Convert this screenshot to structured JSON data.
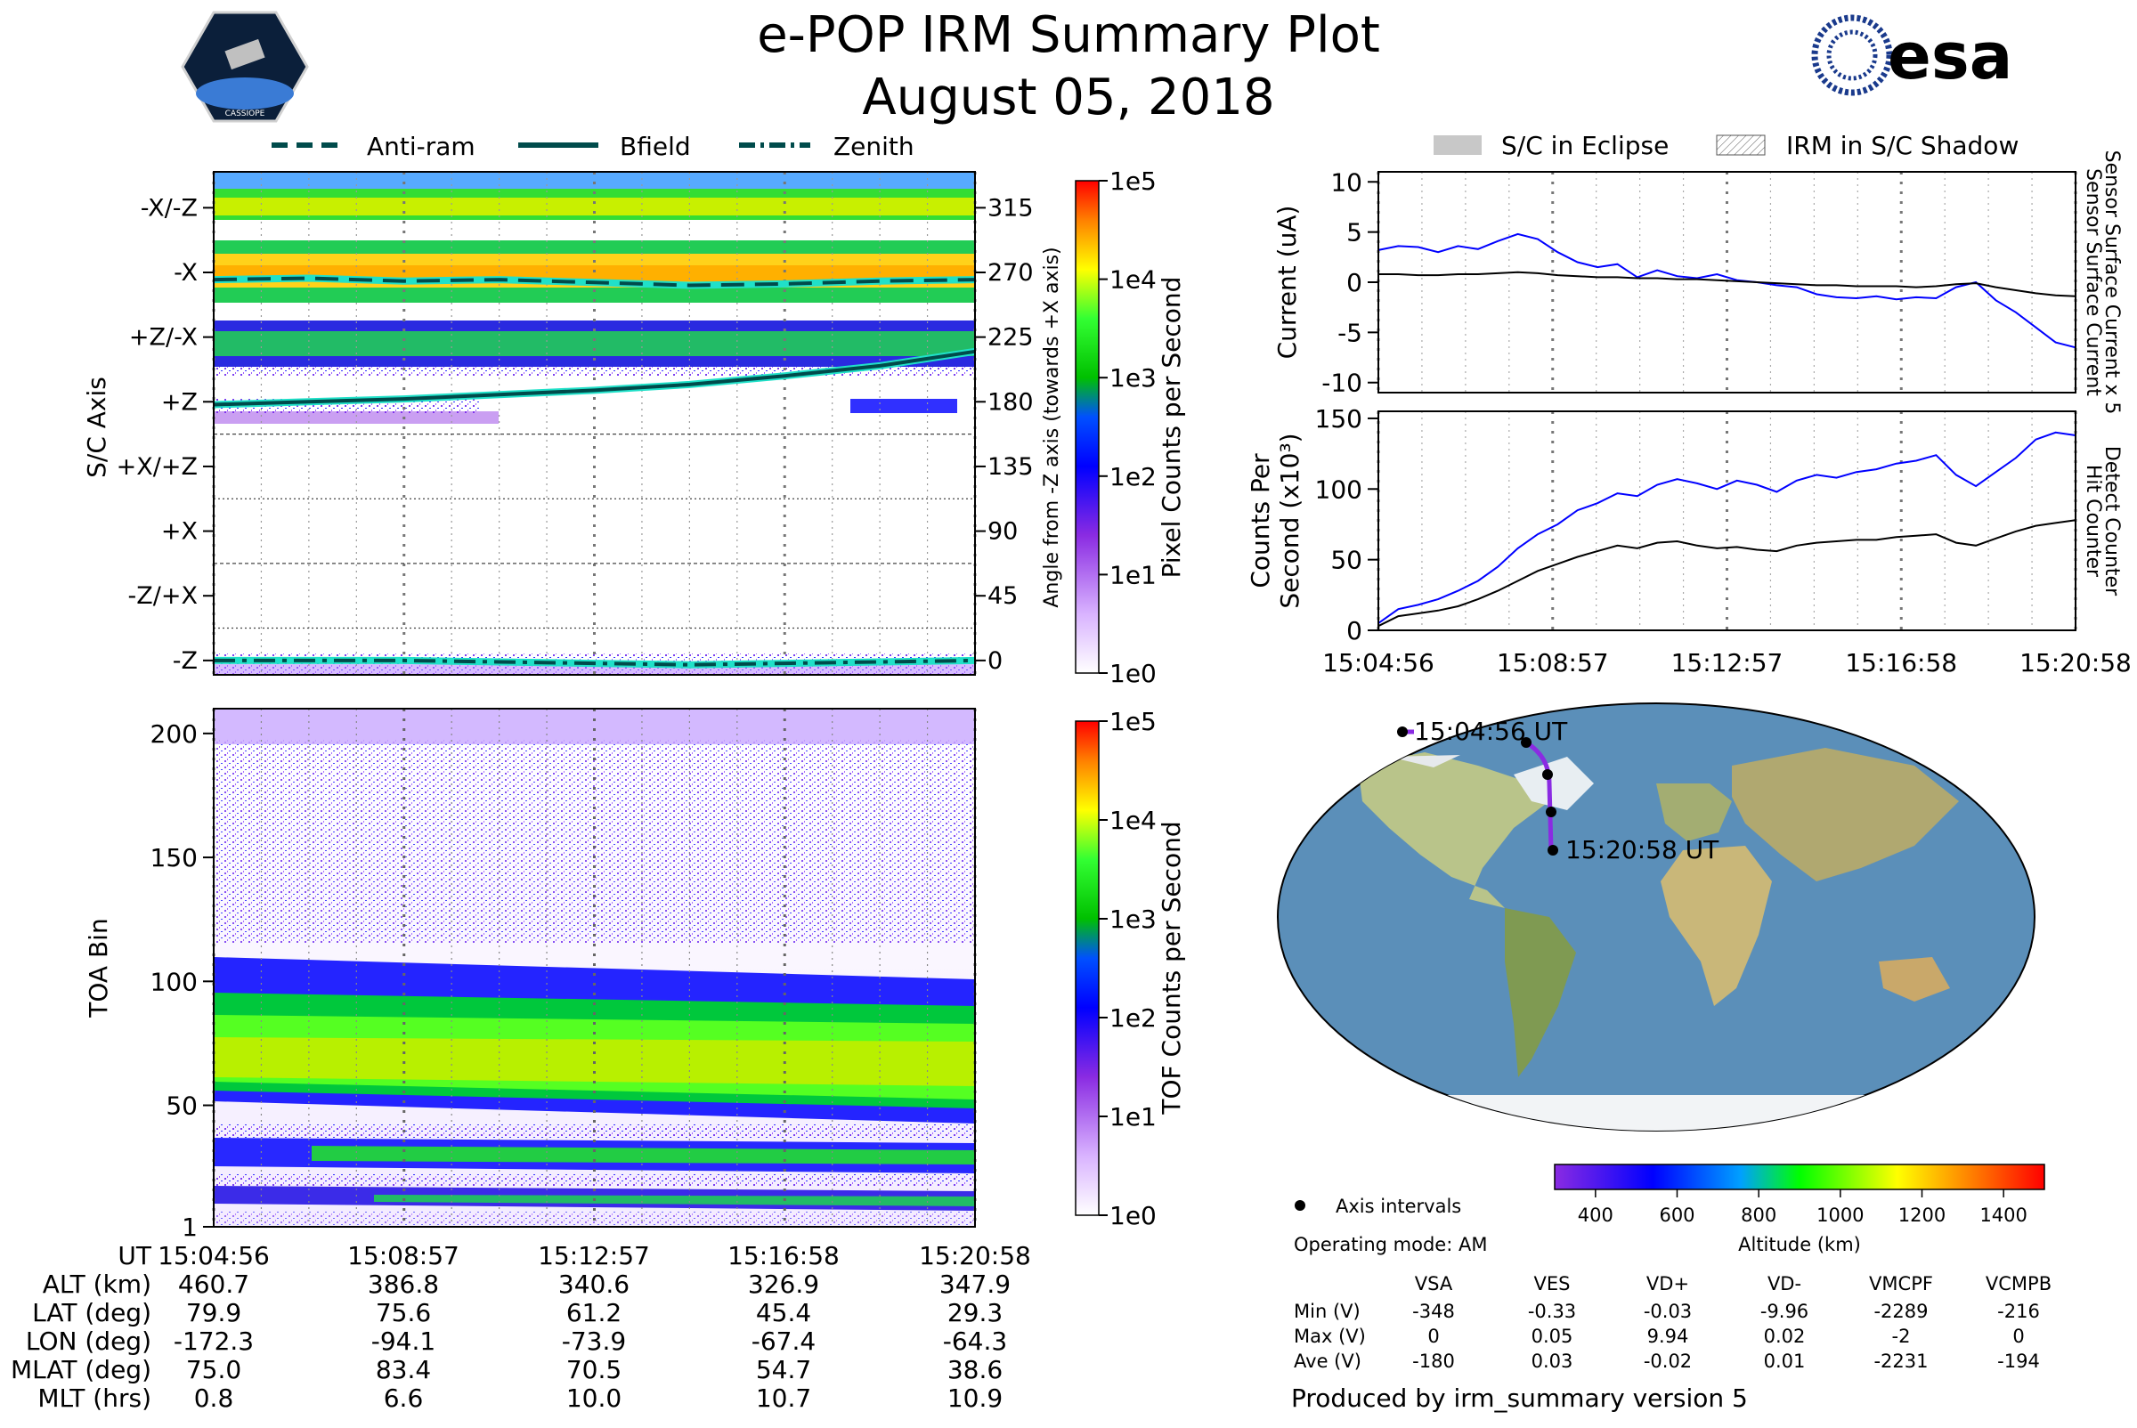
{
  "title": "e-POP IRM Summary Plot",
  "date": "August 05, 2018",
  "logos": {
    "left_text": "CASSIOPE",
    "right_text": "esa",
    "right_color": "#1a3a8c"
  },
  "legend_top": {
    "items": [
      "Anti-ram",
      "Bfield",
      "Zenith"
    ],
    "line_color": "#004b4b",
    "accent": "#20e0c8"
  },
  "legend_top_right": {
    "items": [
      "S/C in Eclipse",
      "IRM in S/C Shadow"
    ]
  },
  "colors": {
    "blue_line": "#0000ff",
    "black_line": "#000000",
    "track": "#8a2be2"
  },
  "time_ticks": [
    "15:04:56",
    "15:08:57",
    "15:12:57",
    "15:16:58",
    "15:20:58"
  ],
  "chart_data": [
    {
      "name": "pixel_spectrogram",
      "type": "heatmap",
      "ylabel": "S/C Axis",
      "y_categories": [
        "-X/-Z",
        "-X",
        "+Z/-X",
        "+Z",
        "+X/+Z",
        "+X",
        "-Z/+X",
        "-Z"
      ],
      "right_ylabel": "Angle from -Z axis (towards +X axis)",
      "right_ticks": [
        315,
        270,
        225,
        180,
        135,
        90,
        45,
        0
      ],
      "ylim": [
        -10,
        340
      ],
      "series": [
        {
          "name": "Anti-ram",
          "style": "dashed",
          "values": [
            265,
            266,
            264,
            265,
            263,
            261,
            262,
            264,
            265
          ]
        },
        {
          "name": "Bfield",
          "style": "solid",
          "values": [
            178,
            180,
            182,
            185,
            188,
            192,
            198,
            205,
            215
          ]
        },
        {
          "name": "Zenith",
          "style": "dashdot",
          "values": [
            0,
            0,
            0,
            -1,
            -2,
            -3,
            -2,
            -1,
            0
          ]
        }
      ],
      "colorbar": {
        "label": "Pixel Counts per Second",
        "ticks": [
          "1e5",
          "1e4",
          "1e3",
          "1e2",
          "1e1",
          "1e0"
        ]
      }
    },
    {
      "name": "tof_spectrogram",
      "type": "heatmap",
      "ylabel": "TOA Bin",
      "yticks": [
        200,
        150,
        100,
        50,
        1
      ],
      "ylim": [
        1,
        210
      ],
      "colorbar": {
        "label": "TOF Counts per Second",
        "ticks": [
          "1e5",
          "1e4",
          "1e3",
          "1e2",
          "1e1",
          "1e0"
        ]
      }
    },
    {
      "name": "currents",
      "type": "line",
      "ylabel": "Current (uA)",
      "yticks": [
        10,
        5,
        0,
        -5,
        -10
      ],
      "ylim": [
        -11,
        11
      ],
      "right_labels": [
        "Sensor Surface Current x 5",
        "Sensor Surface Current"
      ],
      "series": [
        {
          "name": "Sensor Surface Current x 5",
          "color": "blue",
          "values": [
            3.2,
            3.6,
            3.5,
            3.0,
            3.6,
            3.3,
            4.1,
            4.8,
            4.3,
            3.0,
            2.0,
            1.5,
            1.8,
            0.5,
            1.2,
            0.6,
            0.4,
            0.8,
            0.2,
            0.0,
            -0.3,
            -0.5,
            -1.2,
            -1.5,
            -1.6,
            -1.4,
            -1.7,
            -1.5,
            -1.6,
            -0.5,
            0.0,
            -1.8,
            -3.0,
            -4.5,
            -6.0,
            -6.5
          ]
        },
        {
          "name": "Sensor Surface Current",
          "color": "black",
          "values": [
            0.8,
            0.8,
            0.7,
            0.7,
            0.8,
            0.8,
            0.9,
            1.0,
            0.9,
            0.7,
            0.6,
            0.5,
            0.5,
            0.4,
            0.4,
            0.3,
            0.3,
            0.2,
            0.1,
            0.0,
            -0.1,
            -0.2,
            -0.3,
            -0.3,
            -0.4,
            -0.4,
            -0.4,
            -0.5,
            -0.4,
            -0.2,
            -0.1,
            -0.5,
            -0.8,
            -1.1,
            -1.3,
            -1.4
          ]
        }
      ]
    },
    {
      "name": "counts",
      "type": "line",
      "ylabel": [
        "Counts Per",
        "Second (x10³)"
      ],
      "yticks": [
        150,
        100,
        50,
        0
      ],
      "ylim": [
        0,
        155
      ],
      "right_labels": [
        "Detect Counter",
        "Hit Counter"
      ],
      "series": [
        {
          "name": "Detect Counter",
          "color": "blue",
          "values": [
            5,
            15,
            18,
            22,
            28,
            35,
            45,
            58,
            68,
            75,
            85,
            90,
            97,
            95,
            103,
            107,
            104,
            100,
            106,
            103,
            98,
            106,
            110,
            108,
            112,
            114,
            118,
            120,
            124,
            110,
            102,
            112,
            122,
            135,
            140,
            138
          ]
        },
        {
          "name": "Hit Counter",
          "color": "black",
          "values": [
            3,
            10,
            12,
            14,
            17,
            22,
            28,
            35,
            42,
            47,
            52,
            56,
            60,
            58,
            62,
            63,
            60,
            58,
            59,
            57,
            56,
            60,
            62,
            63,
            64,
            64,
            66,
            67,
            68,
            62,
            60,
            65,
            70,
            74,
            76,
            78
          ]
        }
      ]
    },
    {
      "name": "altitude_colorbar",
      "type": "bar",
      "label": "Altitude (km)",
      "ticks": [
        400,
        600,
        800,
        1000,
        1200,
        1400
      ],
      "range": [
        300,
        1500
      ]
    }
  ],
  "map": {
    "start_label": "15:04:56 UT",
    "end_label": "15:20:58 UT",
    "axis_intervals_label": "Axis intervals",
    "operating_mode": "Operating mode: AM"
  },
  "bottom_table": {
    "header": "UT",
    "row_labels": [
      "ALT (km)",
      "LAT (deg)",
      "LON (deg)",
      "MLAT (deg)",
      "MLT (hrs)"
    ],
    "columns": [
      [
        "460.7",
        "79.9",
        "-172.3",
        "75.0",
        "0.8"
      ],
      [
        "386.8",
        "75.6",
        "-94.1",
        "83.4",
        "6.6"
      ],
      [
        "340.6",
        "61.2",
        "-73.9",
        "70.5",
        "10.0"
      ],
      [
        "326.9",
        "45.4",
        "-67.4",
        "54.7",
        "10.7"
      ],
      [
        "347.9",
        "29.3",
        "-64.3",
        "38.6",
        "10.9"
      ]
    ]
  },
  "voltage_table": {
    "columns": [
      "VSA",
      "VES",
      "VD+",
      "VD-",
      "VMCPF",
      "VCMPB"
    ],
    "rows": [
      {
        "label": "Min (V)",
        "values": [
          "-348",
          "-0.33",
          "-0.03",
          "-9.96",
          "-2289",
          "-216"
        ]
      },
      {
        "label": "Max (V)",
        "values": [
          "0",
          "0.05",
          "9.94",
          "0.02",
          "-2",
          "0"
        ]
      },
      {
        "label": "Ave (V)",
        "values": [
          "-180",
          "0.03",
          "-0.02",
          "0.01",
          "-2231",
          "-194"
        ]
      }
    ]
  },
  "footer": "Produced by irm_summary version 5"
}
